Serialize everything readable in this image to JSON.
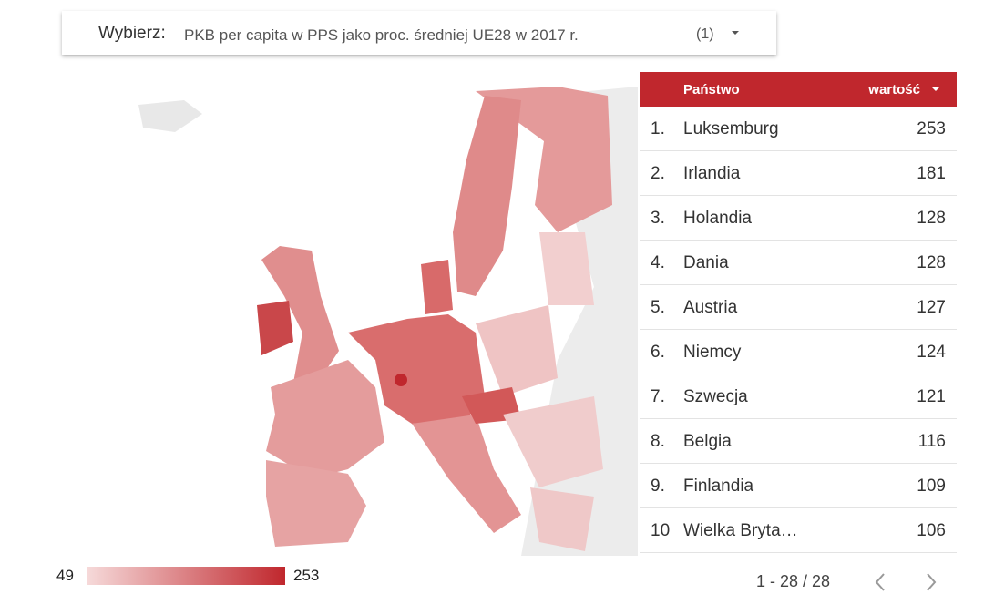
{
  "selector": {
    "label": "Wybierz:",
    "text": "PKB per capita w PPS jako proc. średniej UE28 w 2017 r.",
    "count": "(1)"
  },
  "table": {
    "headers": [
      "Państwo",
      "wartość"
    ],
    "rows": [
      [
        "1.",
        "Luksemburg",
        "253"
      ],
      [
        "2.",
        "Irlandia",
        "181"
      ],
      [
        "3.",
        "Holandia",
        "128"
      ],
      [
        "4.",
        "Dania",
        "128"
      ],
      [
        "5.",
        "Austria",
        "127"
      ],
      [
        "6.",
        "Niemcy",
        "124"
      ],
      [
        "7.",
        "Szwecja",
        "121"
      ],
      [
        "8.",
        "Belgia",
        "116"
      ],
      [
        "9.",
        "Finlandia",
        "109"
      ],
      [
        "10",
        "Wielka Bryta…",
        "106"
      ]
    ]
  },
  "legend": {
    "min": "49",
    "max": "253",
    "min_color": "#f6dada",
    "max_color": "#c0272d"
  },
  "pager": "1 - 28 / 28"
}
